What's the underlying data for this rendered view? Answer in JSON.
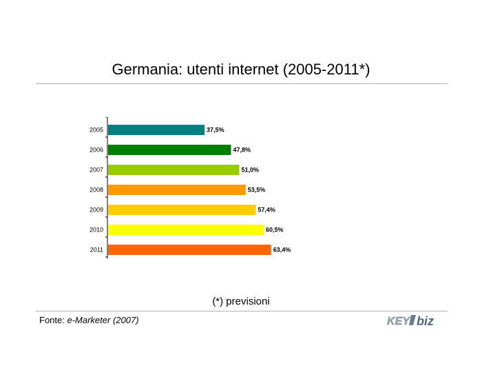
{
  "slide": {
    "title": "Germania: utenti internet (2005-2011*)",
    "note": "(*) previsioni",
    "source_prefix": "Fonte: ",
    "source_name": "e-Marketer",
    "source_year": "(2007)",
    "logo_text": "KEY4biz"
  },
  "chart_data": {
    "type": "bar",
    "orientation": "horizontal",
    "categories": [
      "2005",
      "2006",
      "2007",
      "2008",
      "2009",
      "2010",
      "2011"
    ],
    "values": [
      37.5,
      47.8,
      51.0,
      53.5,
      57.4,
      60.5,
      63.4
    ],
    "value_labels": [
      "37,5%",
      "47,8%",
      "51,0%",
      "53,5%",
      "57,4%",
      "60,5%",
      "63,4%"
    ],
    "colors": [
      "#008080",
      "#008000",
      "#99cc00",
      "#ff9900",
      "#ffcc00",
      "#ffff00",
      "#ff6600"
    ],
    "xlim": [
      0,
      100
    ],
    "grid": false,
    "legend": "none",
    "title": "",
    "xlabel": "",
    "ylabel": ""
  }
}
